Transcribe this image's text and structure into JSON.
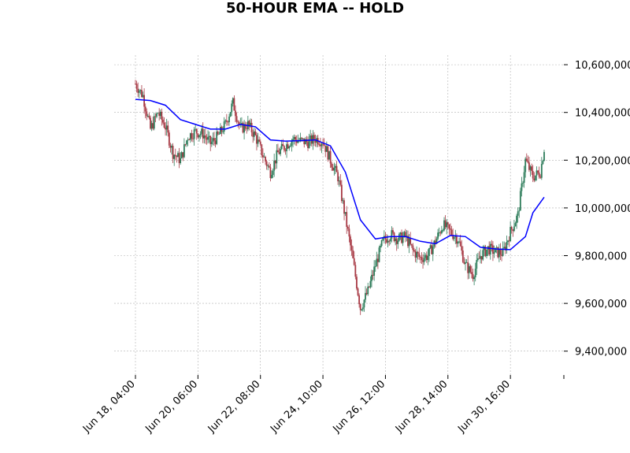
{
  "chart_data": {
    "type": "candlestick",
    "title": "50-HOUR EMA -- HOLD",
    "xlabel": "",
    "ylabel": "",
    "ylim": [
      9300000,
      10640000
    ],
    "yticks": [
      9400000,
      9600000,
      9800000,
      10000000,
      10200000,
      10400000,
      10600000
    ],
    "ytick_labels": [
      "9,400,000",
      "9,600,000",
      "9,800,000",
      "10,000,000",
      "10,200,000",
      "10,400,000",
      "10,600,000"
    ],
    "xticks": [
      "Jun 18, 04:00",
      "Jun 20, 06:00",
      "Jun 22, 08:00",
      "Jun 24, 10:00",
      "Jun 26, 12:00",
      "Jun 28, 14:00",
      "Jun 30, 16:00"
    ],
    "grid": true,
    "colors": {
      "up": "#2e7d5b",
      "down": "#a83a45",
      "ema": "#0000ff",
      "grid": "#b0b0b0"
    },
    "price_path": [
      [
        "Jun 18, 04:00",
        10520000
      ],
      [
        "Jun 18, 10:00",
        10470000
      ],
      [
        "Jun 18, 16:00",
        10330000
      ],
      [
        "Jun 18, 22:00",
        10400000
      ],
      [
        "Jun 19, 04:00",
        10340000
      ],
      [
        "Jun 19, 10:00",
        10230000
      ],
      [
        "Jun 19, 16:00",
        10200000
      ],
      [
        "Jun 19, 22:00",
        10300000
      ],
      [
        "Jun 20, 04:00",
        10320000
      ],
      [
        "Jun 20, 10:00",
        10310000
      ],
      [
        "Jun 20, 16:00",
        10270000
      ],
      [
        "Jun 20, 22:00",
        10300000
      ],
      [
        "Jun 21, 04:00",
        10350000
      ],
      [
        "Jun 21, 10:00",
        10440000
      ],
      [
        "Jun 21, 16:00",
        10330000
      ],
      [
        "Jun 21, 22:00",
        10350000
      ],
      [
        "Jun 22, 04:00",
        10300000
      ],
      [
        "Jun 22, 10:00",
        10220000
      ],
      [
        "Jun 22, 16:00",
        10150000
      ],
      [
        "Jun 22, 22:00",
        10230000
      ],
      [
        "Jun 23, 04:00",
        10260000
      ],
      [
        "Jun 23, 10:00",
        10290000
      ],
      [
        "Jun 23, 16:00",
        10280000
      ],
      [
        "Jun 23, 22:00",
        10275000
      ],
      [
        "Jun 24, 04:00",
        10290000
      ],
      [
        "Jun 24, 10:00",
        10280000
      ],
      [
        "Jun 24, 16:00",
        10200000
      ],
      [
        "Jun 24, 22:00",
        10130000
      ],
      [
        "Jun 25, 04:00",
        9960000
      ],
      [
        "Jun 25, 10:00",
        9780000
      ],
      [
        "Jun 25, 16:00",
        9580000
      ],
      [
        "Jun 25, 22:00",
        9650000
      ],
      [
        "Jun 26, 04:00",
        9760000
      ],
      [
        "Jun 26, 10:00",
        9860000
      ],
      [
        "Jun 26, 16:00",
        9890000
      ],
      [
        "Jun 26, 22:00",
        9870000
      ],
      [
        "Jun 27, 04:00",
        9880000
      ],
      [
        "Jun 27, 10:00",
        9820000
      ],
      [
        "Jun 27, 16:00",
        9790000
      ],
      [
        "Jun 27, 22:00",
        9800000
      ],
      [
        "Jun 28, 04:00",
        9860000
      ],
      [
        "Jun 28, 10:00",
        9930000
      ],
      [
        "Jun 28, 16:00",
        9900000
      ],
      [
        "Jun 28, 22:00",
        9870000
      ],
      [
        "Jun 29, 04:00",
        9760000
      ],
      [
        "Jun 29, 10:00",
        9720000
      ],
      [
        "Jun 29, 16:00",
        9800000
      ],
      [
        "Jun 29, 22:00",
        9830000
      ],
      [
        "Jun 30, 04:00",
        9815000
      ],
      [
        "Jun 30, 10:00",
        9810000
      ],
      [
        "Jun 30, 16:00",
        9900000
      ],
      [
        "Jun 30, 22:00",
        9970000
      ],
      [
        "Jul 01, 04:00",
        10200000
      ],
      [
        "Jul 01, 10:00",
        10130000
      ],
      [
        "Jul 01, 16:00",
        10150000
      ],
      [
        "Jul 01, 19:00",
        10250000
      ]
    ],
    "ema_path": [
      [
        "Jun 18, 04:00",
        10455000
      ],
      [
        "Jun 18, 16:00",
        10450000
      ],
      [
        "Jun 19, 04:00",
        10430000
      ],
      [
        "Jun 19, 16:00",
        10370000
      ],
      [
        "Jun 20, 04:00",
        10350000
      ],
      [
        "Jun 20, 16:00",
        10330000
      ],
      [
        "Jun 21, 04:00",
        10330000
      ],
      [
        "Jun 21, 16:00",
        10350000
      ],
      [
        "Jun 22, 04:00",
        10340000
      ],
      [
        "Jun 22, 16:00",
        10285000
      ],
      [
        "Jun 23, 04:00",
        10280000
      ],
      [
        "Jun 23, 16:00",
        10282000
      ],
      [
        "Jun 24, 04:00",
        10285000
      ],
      [
        "Jun 24, 16:00",
        10260000
      ],
      [
        "Jun 25, 04:00",
        10150000
      ],
      [
        "Jun 25, 16:00",
        9950000
      ],
      [
        "Jun 26, 04:00",
        9870000
      ],
      [
        "Jun 26, 16:00",
        9880000
      ],
      [
        "Jun 27, 04:00",
        9880000
      ],
      [
        "Jun 27, 16:00",
        9860000
      ],
      [
        "Jun 28, 04:00",
        9850000
      ],
      [
        "Jun 28, 16:00",
        9885000
      ],
      [
        "Jun 29, 04:00",
        9880000
      ],
      [
        "Jun 29, 16:00",
        9835000
      ],
      [
        "Jun 30, 04:00",
        9828000
      ],
      [
        "Jun 30, 16:00",
        9825000
      ],
      [
        "Jul 01, 04:00",
        9880000
      ],
      [
        "Jul 01, 10:00",
        9980000
      ],
      [
        "Jul 01, 19:00",
        10045000
      ]
    ]
  }
}
